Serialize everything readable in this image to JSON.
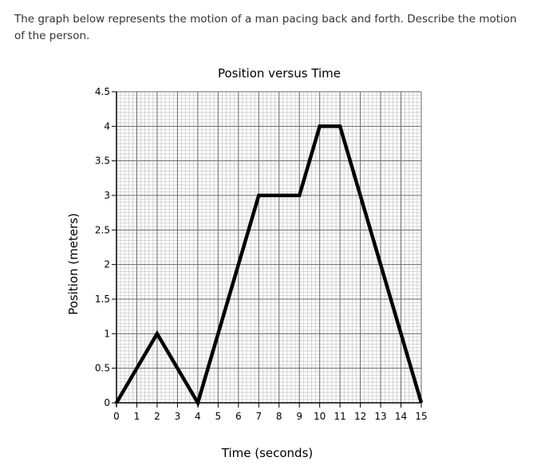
{
  "question": {
    "text": "The graph below represents the motion of a man pacing back and forth. Describe the motion of the person."
  },
  "chart_data": {
    "type": "line",
    "title": "Position versus Time",
    "xlabel": "Time (seconds)",
    "ylabel": "Position (meters)",
    "xlim": [
      0,
      15
    ],
    "ylim": [
      0,
      4.5
    ],
    "x_ticks": [
      "0",
      "1",
      "2",
      "3",
      "4",
      "5",
      "6",
      "7",
      "8",
      "9",
      "10",
      "11",
      "12",
      "13",
      "14",
      "15"
    ],
    "y_ticks": [
      "0",
      "0.5",
      "1",
      "1.5",
      "2",
      "2.5",
      "3",
      "3.5",
      "4",
      "4.5"
    ],
    "grid": true,
    "series": [
      {
        "x": [
          0,
          2,
          4,
          7,
          9,
          10,
          11,
          15
        ],
        "y": [
          0,
          1,
          0,
          3,
          3,
          4,
          4,
          0
        ],
        "color": "#000000"
      }
    ]
  }
}
